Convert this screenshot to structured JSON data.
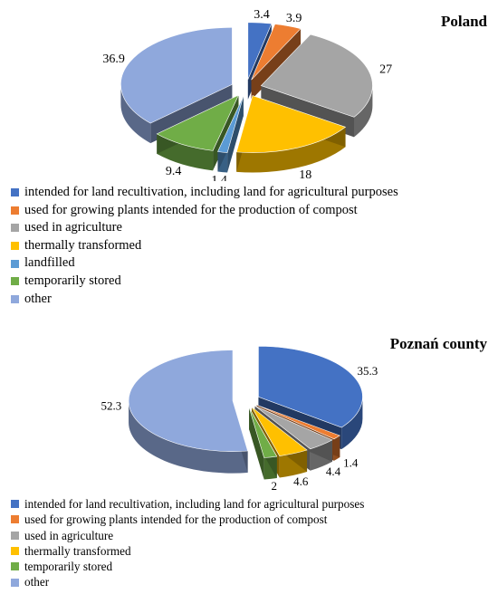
{
  "colors": {
    "recultivation": "#4472C4",
    "compost": "#ED7D31",
    "agriculture": "#A5A5A5",
    "thermal": "#FFC000",
    "landfilled": "#5B9BD5",
    "stored": "#70AD47",
    "other": "#8FA8DC"
  },
  "chart_data": [
    {
      "type": "pie",
      "title": "Poland",
      "categories": [
        "intended for land recultivation, including land for agricultural purposes",
        "used for growing plants intended for the production of compost",
        "used in agriculture",
        "thermally transformed",
        "landfilled",
        "temporarily stored",
        "other"
      ],
      "values": [
        3.4,
        3.9,
        27,
        18,
        1.4,
        9.4,
        36.9
      ],
      "data_labels": [
        "3.4",
        "3.9",
        "27",
        "18",
        "1.4",
        "9.4",
        "36.9"
      ],
      "colors": [
        "#4472C4",
        "#ED7D31",
        "#A5A5A5",
        "#FFC000",
        "#5B9BD5",
        "#70AD47",
        "#8FA8DC"
      ],
      "legend": "bottom"
    },
    {
      "type": "pie",
      "title": "Poznań county",
      "categories": [
        "intended for land recultivation, including land for agricultural purposes",
        "used for growing plants intended for the production of compost",
        "used in agriculture",
        "thermally transformed",
        "temporarily stored",
        "other"
      ],
      "values": [
        35.3,
        1.4,
        4.4,
        4.6,
        2,
        52.3
      ],
      "data_labels": [
        "35.3",
        "1.4",
        "4.4",
        "4.6",
        "2",
        "52.3"
      ],
      "colors": [
        "#4472C4",
        "#ED7D31",
        "#A5A5A5",
        "#FFC000",
        "#70AD47",
        "#8FA8DC"
      ],
      "legend": "bottom"
    }
  ]
}
